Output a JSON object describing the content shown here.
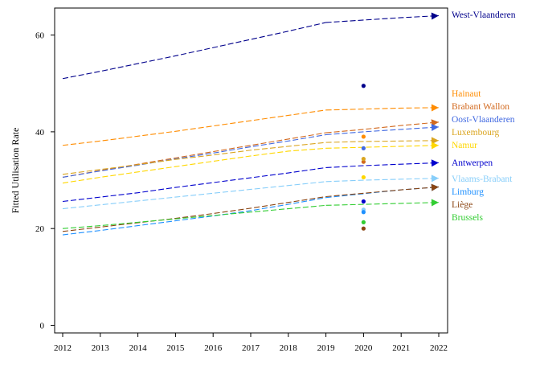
{
  "chart_data": {
    "type": "line",
    "title": "",
    "xlabel": "",
    "ylabel": "Fitted Utilisation Rate",
    "xlim": [
      2012,
      2022
    ],
    "ylim": [
      0,
      66
    ],
    "x_ticks": [
      2012,
      2013,
      2014,
      2015,
      2016,
      2017,
      2018,
      2019,
      2020,
      2021,
      2022
    ],
    "y_ticks": [
      0,
      20,
      40,
      60
    ],
    "grid": false,
    "legend": "labels at right end of lines",
    "solid_x": [
      2012,
      2013,
      2014,
      2015,
      2016,
      2017,
      2018,
      2019
    ],
    "dashed_x": [
      2019,
      2020,
      2021,
      2022
    ],
    "series": [
      {
        "name": "West-Vlaanderen",
        "color": "#00008b",
        "solid": [
          51.0,
          52.5,
          54.1,
          55.7,
          57.4,
          59.1,
          60.8,
          62.6
        ],
        "dashed": [
          62.6,
          63.1,
          63.6,
          64.0
        ],
        "observed_2020": 49.5
      },
      {
        "name": "Hainaut",
        "color": "#ff8c00",
        "solid": [
          37.2,
          38.1,
          39.1,
          40.1,
          41.2,
          42.3,
          43.4,
          44.5
        ],
        "dashed": [
          44.5,
          44.7,
          44.9,
          45.0
        ],
        "observed_2020": 39.0
      },
      {
        "name": "Brabant Wallon",
        "color": "#d2691e",
        "solid": [
          30.6,
          32.0,
          33.3,
          34.6,
          35.9,
          37.2,
          38.5,
          39.8
        ],
        "dashed": [
          39.8,
          40.5,
          41.3,
          42.0
        ],
        "observed_2020": 33.8
      },
      {
        "name": "Oost-Vlaanderen",
        "color": "#4169e1",
        "solid": [
          30.6,
          31.9,
          33.1,
          34.4,
          35.6,
          36.9,
          38.1,
          39.4
        ],
        "dashed": [
          39.4,
          40.0,
          40.5,
          41.0
        ],
        "observed_2020": 36.6
      },
      {
        "name": "Luxembourg",
        "color": "#daa520",
        "solid": [
          31.2,
          32.2,
          33.2,
          34.3,
          35.2,
          36.2,
          37.0,
          37.8
        ],
        "dashed": [
          37.8,
          38.0,
          38.1,
          38.2
        ],
        "observed_2020": 34.4
      },
      {
        "name": "Namur",
        "color": "#ffd700",
        "solid": [
          29.4,
          30.6,
          31.7,
          32.8,
          33.9,
          35.0,
          36.0,
          36.6
        ],
        "dashed": [
          36.6,
          36.8,
          37.0,
          37.2
        ],
        "observed_2020": 30.6
      },
      {
        "name": "Antwerpen",
        "color": "#0000cd",
        "solid": [
          25.6,
          26.5,
          27.4,
          28.5,
          29.5,
          30.5,
          31.5,
          32.6
        ],
        "dashed": [
          32.6,
          33.0,
          33.3,
          33.6
        ],
        "observed_2020": 25.6
      },
      {
        "name": "Vlaams-Brabant",
        "color": "#87cefa",
        "solid": [
          24.1,
          24.9,
          25.7,
          26.5,
          27.3,
          28.1,
          28.9,
          29.7
        ],
        "dashed": [
          29.7,
          30.0,
          30.2,
          30.4
        ],
        "observed_2020": 23.9
      },
      {
        "name": "Limburg",
        "color": "#1e90ff",
        "solid": [
          18.7,
          19.6,
          20.6,
          21.6,
          22.6,
          23.7,
          25.0,
          26.4
        ],
        "dashed": [
          26.4,
          27.2,
          28.0,
          28.6
        ],
        "observed_2020": 23.4
      },
      {
        "name": "Liège",
        "color": "#8b4513",
        "solid": [
          19.4,
          20.3,
          21.2,
          22.1,
          23.1,
          24.2,
          25.4,
          26.6
        ],
        "dashed": [
          26.6,
          27.3,
          28.0,
          28.6
        ],
        "observed_2020": 20.0
      },
      {
        "name": "Brussels",
        "color": "#32cd32",
        "solid": [
          20.0,
          20.6,
          21.3,
          22.0,
          22.7,
          23.4,
          24.1,
          24.8
        ],
        "dashed": [
          24.8,
          25.0,
          25.2,
          25.4
        ],
        "observed_2020": 21.3
      }
    ]
  }
}
